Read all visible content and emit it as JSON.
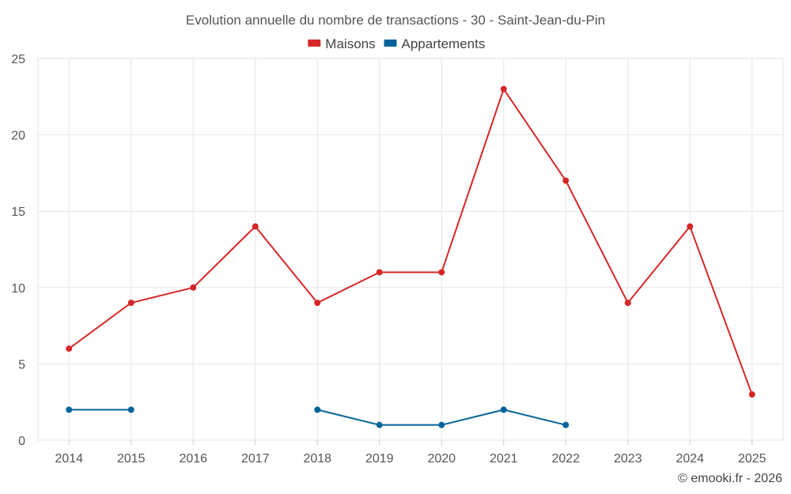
{
  "chart_data": {
    "type": "line",
    "title": "Evolution annuelle du nombre de transactions - 30 - Saint-Jean-du-Pin",
    "categories": [
      "2014",
      "2015",
      "2016",
      "2017",
      "2018",
      "2019",
      "2020",
      "2021",
      "2022",
      "2023",
      "2024",
      "2025"
    ],
    "series": [
      {
        "name": "Maisons",
        "color": "#d62728",
        "values": [
          6,
          9,
          10,
          14,
          9,
          11,
          11,
          23,
          17,
          9,
          14,
          3
        ]
      },
      {
        "name": "Appartements",
        "color": "#03649a",
        "values": [
          2,
          2,
          null,
          null,
          2,
          1,
          1,
          2,
          1,
          null,
          null,
          null
        ]
      }
    ],
    "ylim": [
      0,
      25
    ],
    "yticks": [
      0,
      5,
      10,
      15,
      20,
      25
    ],
    "grid": true,
    "legend_position": "top-center",
    "credit": "© emooki.fr - 2026"
  }
}
